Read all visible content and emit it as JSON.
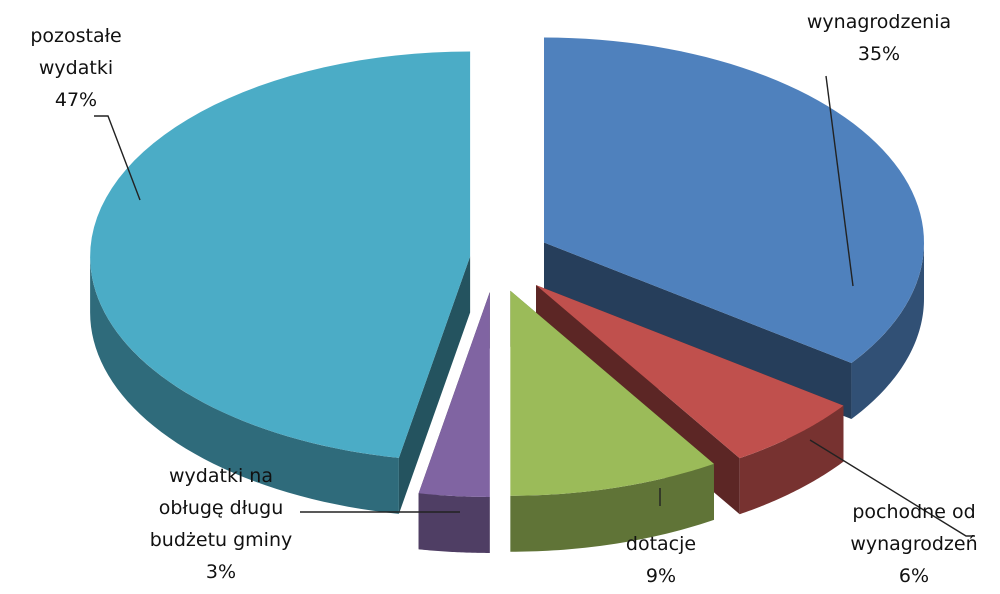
{
  "chart_data": {
    "type": "pie",
    "style": "3d-exploded",
    "slices": [
      {
        "name": "wynagrodzenia",
        "value": 35,
        "label_lines": [
          "wynagrodzenia"
        ],
        "percent_text": "35%",
        "color": "#4f81bd"
      },
      {
        "name": "pochodne od wynagrodzeń",
        "value": 6,
        "label_lines": [
          "pochodne od",
          "wynagrodzeń"
        ],
        "percent_text": "6%",
        "color": "#c0504d"
      },
      {
        "name": "dotacje",
        "value": 9,
        "label_lines": [
          "dotacje"
        ],
        "percent_text": "9%",
        "color": "#9bbb59"
      },
      {
        "name": "wydatki na obługę długu budżetu gminy",
        "value": 3,
        "label_lines": [
          "wydatki na",
          "obługę długu",
          "budżetu gminy"
        ],
        "percent_text": "3%",
        "color": "#8064a2"
      },
      {
        "name": "pozostałe wydatki",
        "value": 47,
        "label_lines": [
          "pozostałe",
          "wydatki"
        ],
        "percent_text": "47%",
        "color": "#4bacc6"
      }
    ]
  }
}
